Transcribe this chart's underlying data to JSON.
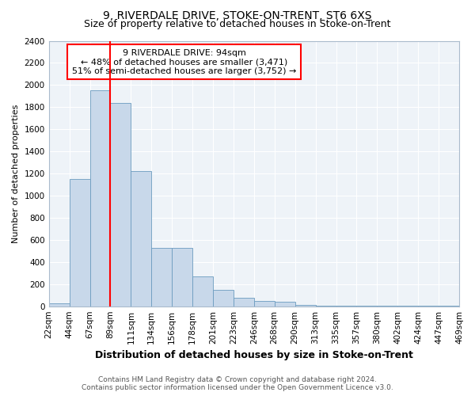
{
  "title": "9, RIVERDALE DRIVE, STOKE-ON-TRENT, ST6 6XS",
  "subtitle": "Size of property relative to detached houses in Stoke-on-Trent",
  "xlabel": "Distribution of detached houses by size in Stoke-on-Trent",
  "ylabel": "Number of detached properties",
  "footer_line1": "Contains HM Land Registry data © Crown copyright and database right 2024.",
  "footer_line2": "Contains public sector information licensed under the Open Government Licence v3.0.",
  "annotation_line1": "9 RIVERDALE DRIVE: 94sqm",
  "annotation_line2": "← 48% of detached houses are smaller (3,471)",
  "annotation_line3": "51% of semi-detached houses are larger (3,752) →",
  "bar_values": [
    25,
    1150,
    1950,
    1840,
    1225,
    525,
    525,
    270,
    150,
    80,
    50,
    40,
    10,
    5,
    5,
    5,
    5,
    5,
    5,
    5
  ],
  "categories": [
    "22sqm",
    "44sqm",
    "67sqm",
    "89sqm",
    "111sqm",
    "134sqm",
    "156sqm",
    "178sqm",
    "201sqm",
    "223sqm",
    "246sqm",
    "268sqm",
    "290sqm",
    "313sqm",
    "335sqm",
    "357sqm",
    "380sqm",
    "402sqm",
    "424sqm",
    "447sqm",
    "469sqm"
  ],
  "bar_color": "#c8d8ea",
  "bar_edge_color": "#6b9bbf",
  "redline_x": 3,
  "redline_color": "red",
  "annotation_box_color": "red",
  "background_color": "#ffffff",
  "plot_bg_color": "#eef3f8",
  "grid_color": "#ffffff",
  "ylim": [
    0,
    2400
  ],
  "yticks": [
    0,
    200,
    400,
    600,
    800,
    1000,
    1200,
    1400,
    1600,
    1800,
    2000,
    2200,
    2400
  ],
  "title_fontsize": 10,
  "subtitle_fontsize": 9,
  "xlabel_fontsize": 9,
  "ylabel_fontsize": 8,
  "tick_fontsize": 7.5,
  "annotation_fontsize": 8,
  "footer_fontsize": 6.5
}
